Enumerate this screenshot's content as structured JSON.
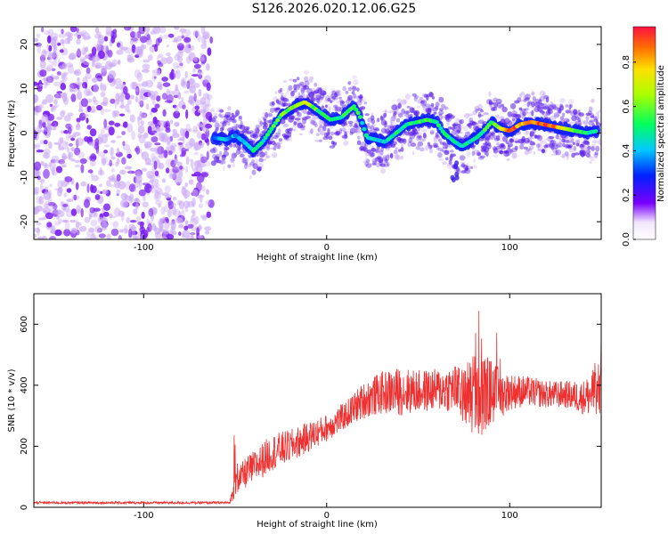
{
  "title": "S126.2026.020.12.06.G25",
  "chart_data": [
    {
      "type": "heatmap",
      "name": "spectrogram",
      "xlabel": "Height of straight line (km)",
      "ylabel": "Frequency (Hz)",
      "xlim": [
        -160,
        150
      ],
      "ylim": [
        -24,
        24
      ],
      "xticks": [
        -100,
        0,
        100
      ],
      "yticks": [
        -20,
        -10,
        0,
        10,
        20
      ],
      "colorbar": {
        "label": "Normalized spectral amplitude",
        "range": [
          0,
          0.96
        ],
        "ticks": [
          "0.0",
          "0.2",
          "0.4",
          "0.6",
          "0.8"
        ]
      },
      "noise_region_km": [
        -160,
        -65
      ],
      "signal_onset_km": -65,
      "ridge": {
        "height_km": [
          -62,
          -55,
          -50,
          -45,
          -40,
          -35,
          -30,
          -25,
          -20,
          -15,
          -12,
          -8,
          -3,
          2,
          8,
          12,
          15,
          18,
          22,
          27,
          32,
          38,
          44,
          50,
          55,
          60,
          64,
          70,
          74,
          78,
          82,
          86,
          90,
          95,
          100,
          106,
          112,
          118,
          124,
          130,
          136,
          142,
          148
        ],
        "frequency_hz": [
          -1,
          -1.5,
          -0.5,
          -2,
          -4,
          -2,
          1,
          4,
          5.5,
          6.5,
          7,
          6,
          4.5,
          3,
          3.5,
          5,
          6,
          4,
          -1,
          -1.5,
          -2,
          0,
          2,
          2.5,
          3,
          2.5,
          0,
          -2,
          -3,
          -2,
          -1,
          0.5,
          2.5,
          1,
          0.5,
          2,
          2.5,
          2,
          1.5,
          1,
          0.5,
          0,
          0.5
        ],
        "amplitude": [
          0.35,
          0.4,
          0.4,
          0.45,
          0.5,
          0.5,
          0.55,
          0.6,
          0.6,
          0.7,
          0.75,
          0.65,
          0.55,
          0.5,
          0.5,
          0.55,
          0.6,
          0.5,
          0.45,
          0.45,
          0.45,
          0.5,
          0.5,
          0.55,
          0.6,
          0.55,
          0.5,
          0.45,
          0.5,
          0.5,
          0.5,
          0.55,
          0.6,
          0.7,
          0.95,
          0.85,
          0.9,
          0.95,
          0.9,
          0.75,
          0.6,
          0.5,
          0.45
        ]
      }
    },
    {
      "type": "line",
      "name": "snr",
      "xlabel": "Height of straight line (km)",
      "ylabel": "SNR (10 * v/v)",
      "xlim": [
        -160,
        150
      ],
      "ylim": [
        0,
        700
      ],
      "xticks": [
        -100,
        0,
        100
      ],
      "yticks": [
        0,
        200,
        400,
        600
      ],
      "series": [
        {
          "name": "SNR",
          "color": "#ee3030",
          "envelope_x": [
            -160,
            -130,
            -100,
            -80,
            -60,
            -53,
            -50,
            -45,
            -40,
            -30,
            -20,
            -10,
            0,
            10,
            20,
            30,
            40,
            50,
            60,
            70,
            75,
            80,
            85,
            90,
            95,
            100,
            110,
            120,
            130,
            140,
            145,
            150
          ],
          "envelope_y": [
            15,
            15,
            15,
            15,
            15,
            15,
            70,
            110,
            130,
            180,
            200,
            230,
            260,
            300,
            350,
            375,
            380,
            380,
            385,
            390,
            360,
            380,
            360,
            380,
            370,
            380,
            380,
            370,
            370,
            360,
            370,
            380
          ],
          "spread": [
            4,
            4,
            4,
            4,
            4,
            4,
            40,
            50,
            55,
            60,
            55,
            50,
            45,
            45,
            60,
            70,
            80,
            70,
            70,
            80,
            90,
            150,
            150,
            110,
            80,
            60,
            50,
            45,
            45,
            55,
            80,
            80
          ]
        }
      ]
    }
  ]
}
